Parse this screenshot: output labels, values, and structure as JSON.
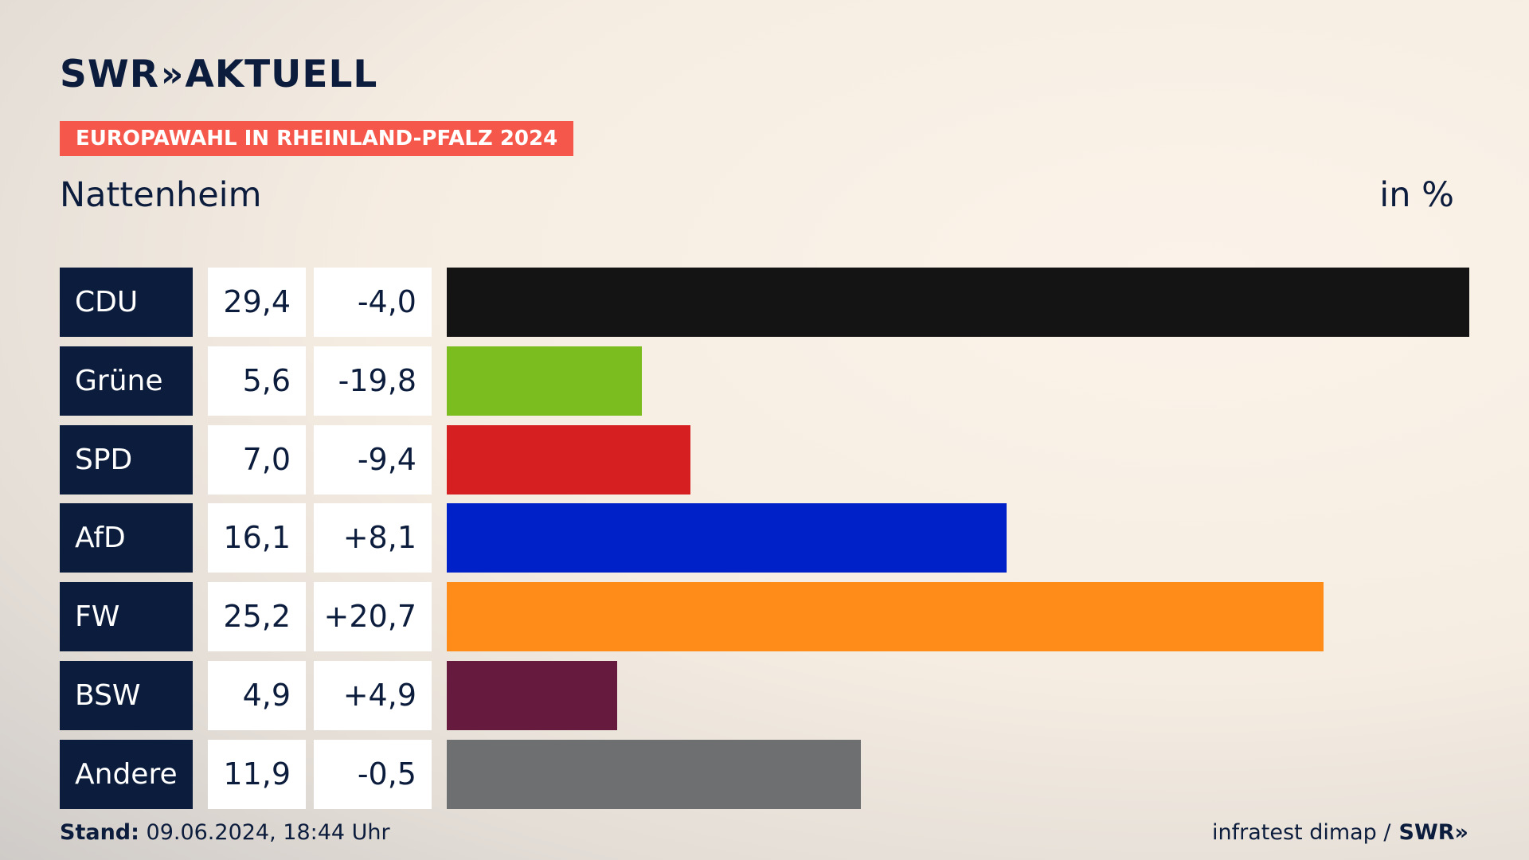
{
  "brand": {
    "name": "SWR",
    "section": "AKTUELL",
    "chevrons": "»"
  },
  "tag": "EUROPAWAHL IN RHEINLAND-PFALZ 2024",
  "place": "Nattenheim",
  "unit": "in %",
  "footer": {
    "stand_label": "Stand:",
    "stand_value": "09.06.2024, 18:44 Uhr",
    "source": "infratest dimap /",
    "source_brand": "SWR"
  },
  "chart_data": {
    "type": "bar",
    "orientation": "horizontal",
    "title": "Europawahl in Rheinland-Pfalz 2024 – Nattenheim",
    "unit": "in %",
    "categories": [
      "CDU",
      "Grüne",
      "SPD",
      "AfD",
      "FW",
      "BSW",
      "Andere"
    ],
    "values": [
      29.4,
      5.6,
      7.0,
      16.1,
      25.2,
      4.9,
      11.9
    ],
    "value_labels": [
      "29,4",
      "5,6",
      "7,0",
      "16,1",
      "25,2",
      "4,9",
      "11,9"
    ],
    "changes": [
      -4.0,
      -19.8,
      -9.4,
      8.1,
      20.7,
      4.9,
      -0.5
    ],
    "change_labels": [
      "-4,0",
      "-19,8",
      "-9,4",
      "+8,1",
      "+20,7",
      "+4,9",
      "-0,5"
    ],
    "colors": [
      "#141414",
      "#7bbd1e",
      "#d61f20",
      "#0020c8",
      "#ff8c19",
      "#661a3d",
      "#6e6f71"
    ],
    "xlim": [
      0,
      29.4
    ]
  }
}
